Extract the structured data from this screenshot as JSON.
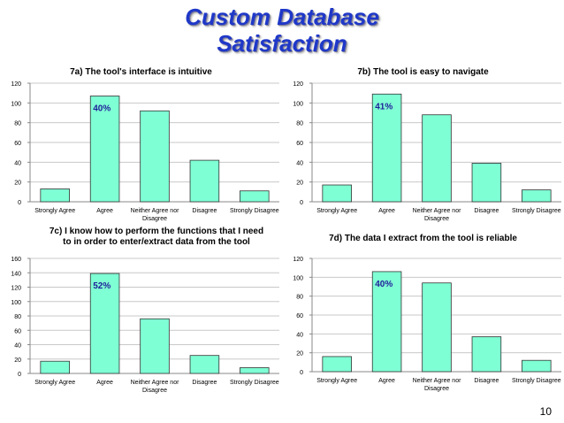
{
  "slide": {
    "title_line1": "Custom Database",
    "title_line2": "Satisfaction",
    "page_number": "10"
  },
  "colors": {
    "title": "#1f38c8",
    "bar_fill": "#7fffd4",
    "bar_stroke": "#333333",
    "axis": "#888888",
    "grid": "#c8c8c8"
  },
  "chart_data": [
    {
      "id": "7a",
      "type": "bar",
      "title": "7a) The tool's interface is intuitive",
      "categories": [
        "Strongly Agree",
        "Agree",
        "Neither Agree nor Disagree",
        "Disagree",
        "Strongly Disagree"
      ],
      "values": [
        13,
        107,
        92,
        42,
        11
      ],
      "ylim": [
        0,
        120
      ],
      "yticks": [
        0,
        20,
        40,
        60,
        80,
        100,
        120
      ],
      "annotation": {
        "text": "40%",
        "category_index": 1
      },
      "grid": true,
      "legend": false
    },
    {
      "id": "7b",
      "type": "bar",
      "title": "7b) The tool is easy to navigate",
      "categories": [
        "Strongly Agree",
        "Agree",
        "Neither Agree nor Disagree",
        "Disagree",
        "Strongly Disagree"
      ],
      "values": [
        17,
        109,
        88,
        39,
        12
      ],
      "ylim": [
        0,
        120
      ],
      "yticks": [
        0,
        20,
        40,
        60,
        80,
        100,
        120
      ],
      "annotation": {
        "text": "41%",
        "category_index": 1
      },
      "grid": true,
      "legend": false
    },
    {
      "id": "7c",
      "type": "bar",
      "title": "7c) I know how to perform the functions that I need to in order to enter/extract data from the tool",
      "categories": [
        "Strongly Agree",
        "Agree",
        "Neither Agree nor Disagree",
        "Disagree",
        "Strongly Disagree"
      ],
      "values": [
        17,
        139,
        76,
        25,
        8
      ],
      "ylim": [
        0,
        160
      ],
      "yticks": [
        0,
        20,
        40,
        60,
        80,
        100,
        120,
        140,
        160
      ],
      "annotation": {
        "text": "52%",
        "category_index": 1
      },
      "grid": true,
      "legend": false
    },
    {
      "id": "7d",
      "type": "bar",
      "title": "7d) The data I extract from the tool is reliable",
      "categories": [
        "Strongly Agree",
        "Agree",
        "Neither Agree nor Disagree",
        "Disagree",
        "Strongly Disagree"
      ],
      "values": [
        16,
        106,
        94,
        37,
        12
      ],
      "ylim": [
        0,
        120
      ],
      "yticks": [
        0,
        20,
        40,
        60,
        80,
        100,
        120
      ],
      "annotation": {
        "text": "40%",
        "category_index": 1
      },
      "grid": true,
      "legend": false
    }
  ]
}
